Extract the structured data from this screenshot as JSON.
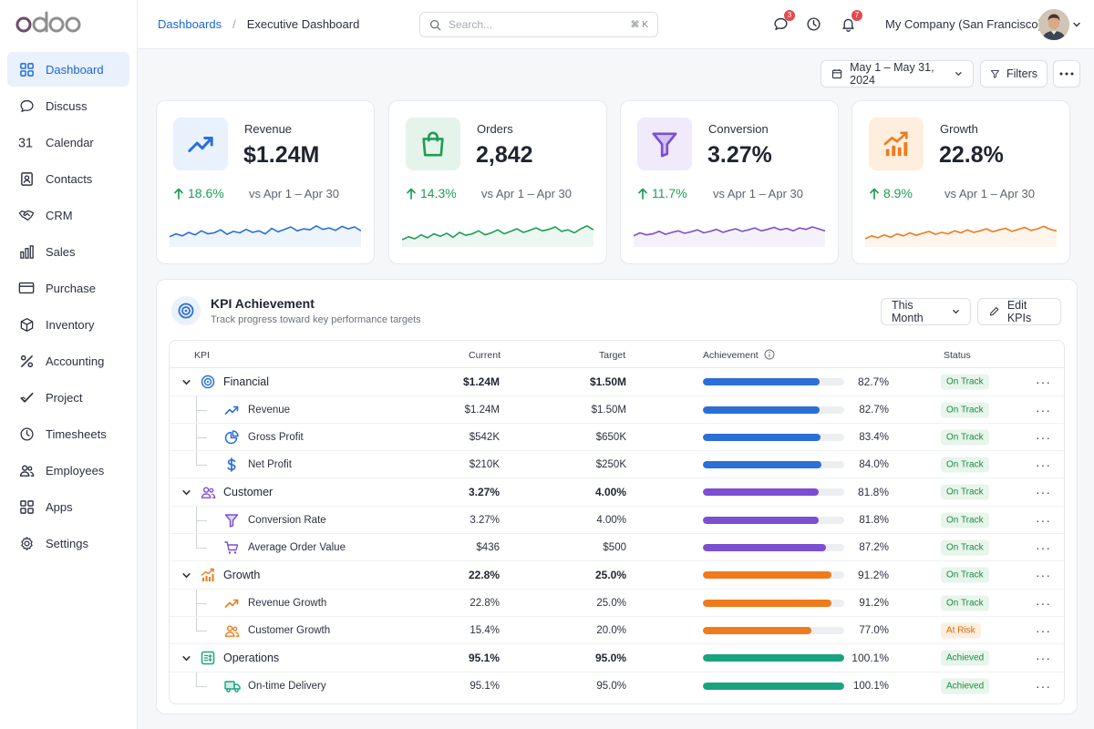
{
  "brand": {
    "logo_text": "odoo"
  },
  "sidebar": {
    "items": [
      {
        "label": "Dashboard",
        "icon": "dashboard-grid-icon",
        "active": true
      },
      {
        "label": "Discuss",
        "icon": "chat-bubble-icon"
      },
      {
        "label": "Calendar",
        "icon": "calendar-31-icon"
      },
      {
        "label": "Contacts",
        "icon": "contacts-icon"
      },
      {
        "label": "CRM",
        "icon": "handshake-icon"
      },
      {
        "label": "Sales",
        "icon": "bar-chart-icon"
      },
      {
        "label": "Purchase",
        "icon": "credit-card-icon"
      },
      {
        "label": "Inventory",
        "icon": "box-icon"
      },
      {
        "label": "Accounting",
        "icon": "percent-icon"
      },
      {
        "label": "Project",
        "icon": "checkmark-icon"
      },
      {
        "label": "Timesheets",
        "icon": "clock-icon"
      },
      {
        "label": "Employees",
        "icon": "people-icon"
      },
      {
        "label": "Apps",
        "icon": "apps-grid-icon"
      },
      {
        "label": "Settings",
        "icon": "gear-icon"
      }
    ]
  },
  "topbar": {
    "breadcrumb_parent": "Dashboards",
    "breadcrumb_sep": "/",
    "breadcrumb_current": "Executive Dashboard",
    "search_placeholder": "Search...",
    "search_shortcut": "⌘ K",
    "messages_badge": "3",
    "notifications_badge": "7",
    "company": "My Company (San Francisco)"
  },
  "toolbar": {
    "date_range": "May 1 – May 31, 2024",
    "filters_label": "Filters"
  },
  "cards": [
    {
      "title": "Revenue",
      "value": "$1.24M",
      "delta": "18.6%",
      "compare": "vs Apr 1 – Apr 30",
      "color": "#2b6fd6",
      "bg": "#e9f1fd",
      "icon": "trending-up-icon"
    },
    {
      "title": "Orders",
      "value": "2,842",
      "delta": "14.3%",
      "compare": "vs Apr 1 – Apr 30",
      "color": "#1f9d55",
      "bg": "#e5f4ea",
      "icon": "shopping-bag-icon"
    },
    {
      "title": "Conversion",
      "value": "3.27%",
      "delta": "11.7%",
      "compare": "vs Apr 1 – Apr 30",
      "color": "#7b4fd0",
      "bg": "#f0eafb",
      "icon": "funnel-icon"
    },
    {
      "title": "Growth",
      "value": "22.8%",
      "delta": "8.9%",
      "compare": "vs Apr 1 – Apr 30",
      "color": "#f07a1c",
      "bg": "#fdeede",
      "icon": "growth-chart-icon"
    }
  ],
  "kpi_panel": {
    "title": "KPI Achievement",
    "subtitle": "Track progress toward key performance targets",
    "period": "This Month",
    "edit_label": "Edit KPIs",
    "columns": {
      "kpi": "KPI",
      "current": "Current",
      "target": "Target",
      "achievement": "Achievement",
      "status": "Status"
    },
    "groups": [
      {
        "name": "Financial",
        "icon": "target-icon",
        "color": "#2b6fd6",
        "current": "$1.24M",
        "target": "$1.50M",
        "achievement": 82.7,
        "achievement_text": "82.7%",
        "status": "On Track",
        "rows": [
          {
            "name": "Revenue",
            "icon": "trending-up-icon",
            "current": "$1.24M",
            "target": "$1.50M",
            "achievement": 82.7,
            "achievement_text": "82.7%",
            "status": "On Track"
          },
          {
            "name": "Gross Profit",
            "icon": "pie-chart-icon",
            "current": "$542K",
            "target": "$650K",
            "achievement": 83.4,
            "achievement_text": "83.4%",
            "status": "On Track"
          },
          {
            "name": "Net Profit",
            "icon": "dollar-icon",
            "current": "$210K",
            "target": "$250K",
            "achievement": 84.0,
            "achievement_text": "84.0%",
            "status": "On Track"
          }
        ]
      },
      {
        "name": "Customer",
        "icon": "people-icon",
        "color": "#7b4fd0",
        "current": "3.27%",
        "target": "4.00%",
        "achievement": 81.8,
        "achievement_text": "81.8%",
        "status": "On Track",
        "rows": [
          {
            "name": "Conversion Rate",
            "icon": "funnel-icon",
            "current": "3.27%",
            "target": "4.00%",
            "achievement": 81.8,
            "achievement_text": "81.8%",
            "status": "On Track"
          },
          {
            "name": "Average Order Value",
            "icon": "cart-icon",
            "current": "$436",
            "target": "$500",
            "achievement": 87.2,
            "achievement_text": "87.2%",
            "status": "On Track"
          }
        ]
      },
      {
        "name": "Growth",
        "icon": "growth-chart-icon",
        "color": "#f07a1c",
        "current": "22.8%",
        "target": "25.0%",
        "achievement": 91.2,
        "achievement_text": "91.2%",
        "status": "On Track",
        "rows": [
          {
            "name": "Revenue Growth",
            "icon": "trending-up-icon",
            "current": "22.8%",
            "target": "25.0%",
            "achievement": 91.2,
            "achievement_text": "91.2%",
            "status": "On Track"
          },
          {
            "name": "Customer Growth",
            "icon": "people-icon",
            "current": "15.4%",
            "target": "20.0%",
            "achievement": 77.0,
            "achievement_text": "77.0%",
            "status": "At Risk"
          }
        ]
      },
      {
        "name": "Operations",
        "icon": "operations-icon",
        "color": "#1aa37f",
        "current": "95.1%",
        "target": "95.0%",
        "achievement": 100.1,
        "achievement_text": "100.1%",
        "status": "Achieved",
        "rows": [
          {
            "name": "On-time Delivery",
            "icon": "truck-icon",
            "current": "95.1%",
            "target": "95.0%",
            "achievement": 100.1,
            "achievement_text": "100.1%",
            "status": "Achieved"
          }
        ]
      }
    ]
  }
}
